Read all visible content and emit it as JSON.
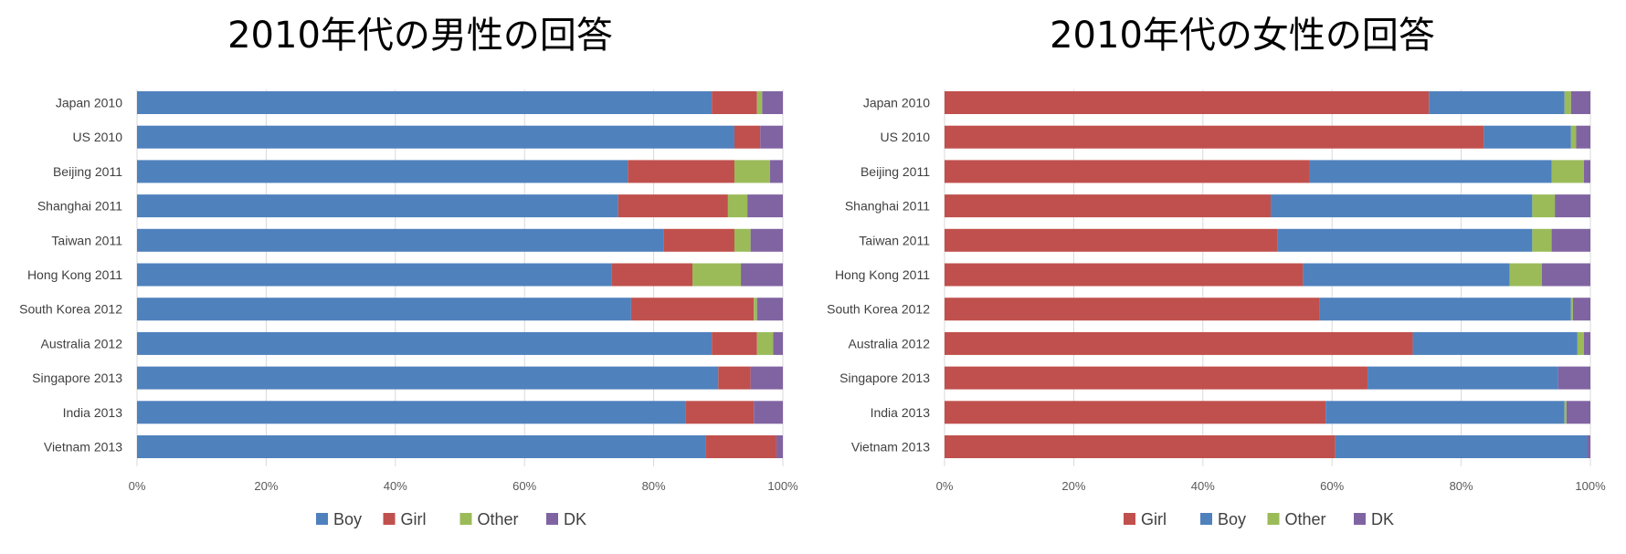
{
  "chart_data": [
    {
      "type": "bar",
      "orientation": "horizontal",
      "stacked": "percent",
      "title": "2010年代の男性の回答",
      "categories": [
        "Japan 2010",
        "US 2010",
        "Beijing 2011",
        "Shanghai 2011",
        "Taiwan 2011",
        "Hong Kong 2011",
        "South Korea 2012",
        "Australia 2012",
        "Singapore 2013",
        "India 2013",
        "Vietnam 2013"
      ],
      "series": [
        {
          "name": "Boy",
          "color": "#4f81bd",
          "values": [
            89,
            92.5,
            76,
            74.5,
            81.5,
            73.5,
            76.5,
            89,
            90,
            85,
            88
          ]
        },
        {
          "name": "Girl",
          "color": "#c0504d",
          "values": [
            7,
            4,
            16.5,
            17,
            11,
            12.5,
            19,
            7,
            5,
            10.5,
            11
          ]
        },
        {
          "name": "Other",
          "color": "#9bbb59",
          "values": [
            0.8,
            0,
            5.5,
            3,
            2.5,
            7.5,
            0.5,
            2.5,
            0,
            0,
            0
          ]
        },
        {
          "name": "DK",
          "color": "#8064a2",
          "values": [
            3.2,
            3.5,
            2,
            5.5,
            5,
            6.5,
            4,
            1.5,
            5,
            4.5,
            1
          ]
        }
      ],
      "xlim": [
        0,
        100
      ],
      "xticks": [
        "0%",
        "20%",
        "40%",
        "60%",
        "80%",
        "100%"
      ],
      "grid": true,
      "legend": "bottom"
    },
    {
      "type": "bar",
      "orientation": "horizontal",
      "stacked": "percent",
      "title": "2010年代の女性の回答",
      "categories": [
        "Japan 2010",
        "US 2010",
        "Beijing 2011",
        "Shanghai 2011",
        "Taiwan 2011",
        "Hong Kong 2011",
        "South Korea 2012",
        "Australia 2012",
        "Singapore 2013",
        "India 2013",
        "Vietnam 2013"
      ],
      "series": [
        {
          "name": "Girl",
          "color": "#c0504d",
          "values": [
            75,
            83.5,
            56.5,
            50.5,
            51.5,
            55.5,
            58,
            72.5,
            65.5,
            59,
            60.5
          ]
        },
        {
          "name": "Boy",
          "color": "#4f81bd",
          "values": [
            21,
            13.5,
            37.5,
            40.5,
            39.5,
            32,
            39,
            25.5,
            29.5,
            37,
            39
          ]
        },
        {
          "name": "Other",
          "color": "#9bbb59",
          "values": [
            1,
            0.8,
            5,
            3.5,
            3,
            5,
            0.3,
            1,
            0,
            0.3,
            0
          ]
        },
        {
          "name": "DK",
          "color": "#8064a2",
          "values": [
            3,
            2.2,
            1,
            5.5,
            6,
            7.5,
            2.7,
            1,
            5,
            3.7,
            0.5
          ]
        }
      ],
      "xlim": [
        0,
        100
      ],
      "xticks": [
        "0%",
        "20%",
        "40%",
        "60%",
        "80%",
        "100%"
      ],
      "grid": true,
      "legend": "bottom"
    }
  ]
}
